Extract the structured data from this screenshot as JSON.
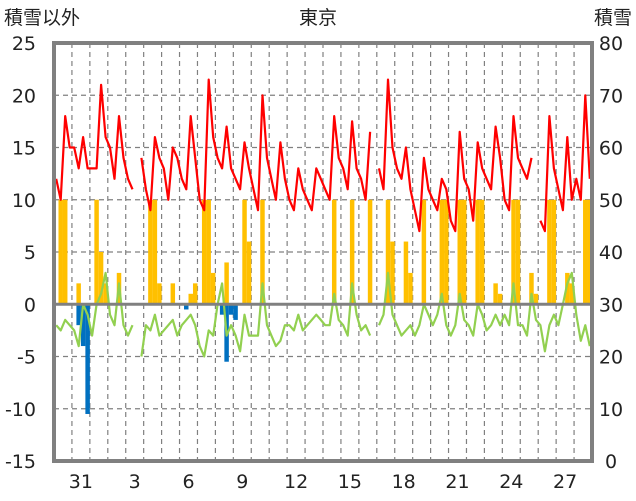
{
  "chart_data": {
    "type": "line",
    "title": "東京",
    "ylabel_left": "積雪以外",
    "ylabel_right": "積雪",
    "ylim_left": [
      -15,
      25
    ],
    "ylim_right": [
      0,
      80
    ],
    "yticks_left": [
      "25",
      "20",
      "15",
      "10",
      "5",
      "0",
      "-5",
      "-10",
      "-15"
    ],
    "yticks_right": [
      "80",
      "70",
      "60",
      "50",
      "40",
      "30",
      "20",
      "10",
      "0"
    ],
    "xtick_labels": [
      {
        "day_index": 1,
        "label": "31"
      },
      {
        "day_index": 4,
        "label": "3"
      },
      {
        "day_index": 7,
        "label": "6"
      },
      {
        "day_index": 10,
        "label": "9"
      },
      {
        "day_index": 13,
        "label": "12"
      },
      {
        "day_index": 16,
        "label": "15"
      },
      {
        "day_index": 19,
        "label": "18"
      },
      {
        "day_index": 22,
        "label": "21"
      },
      {
        "day_index": 25,
        "label": "24"
      },
      {
        "day_index": 28,
        "label": "27"
      }
    ],
    "days": 30,
    "samples_per_day": 4,
    "grid": true,
    "colors": {
      "red": "#ff0000",
      "green": "#92d050",
      "yellow": "#ffc000",
      "blue": "#0070c0",
      "frame": "#808080"
    },
    "series": [
      {
        "name": "red",
        "type": "line",
        "values": [
          12,
          10,
          18,
          15,
          15,
          13,
          16,
          13,
          13,
          13,
          21,
          16,
          15,
          12,
          18,
          14,
          12,
          11,
          null,
          14,
          11,
          9,
          16,
          14,
          13,
          10,
          15,
          14,
          12,
          11,
          18,
          14,
          10,
          9,
          21.5,
          16,
          14,
          13,
          17,
          13,
          12,
          11,
          15.5,
          13,
          11,
          9,
          20,
          14,
          12,
          10,
          15.5,
          12,
          10,
          9,
          13,
          11,
          10,
          9,
          13,
          12,
          11,
          10,
          18,
          14,
          13,
          11,
          17.5,
          13,
          12,
          10,
          16.5,
          null,
          13,
          11,
          21.5,
          15,
          13,
          12,
          15,
          11,
          9,
          7,
          14,
          11,
          10,
          9,
          12,
          11,
          8,
          7,
          16.5,
          12,
          11,
          8,
          15.5,
          13,
          12,
          11,
          17,
          14,
          10,
          9,
          18,
          14,
          13,
          12,
          14,
          null,
          8,
          7,
          18,
          13,
          11,
          9,
          16,
          10,
          12,
          10,
          20,
          12
        ]
      },
      {
        "name": "green",
        "type": "line",
        "values": [
          -2,
          -2.5,
          -1.5,
          -2,
          -2.5,
          -4,
          0,
          -1,
          -3,
          0,
          1,
          3,
          -1,
          -2,
          2,
          -2,
          -3,
          -2,
          null,
          -5,
          -2,
          -2.5,
          -1,
          -3,
          -2.5,
          -2,
          -1.5,
          -3,
          -2,
          -1.5,
          -1,
          -2,
          -4,
          -5,
          -2.5,
          -3,
          0,
          2,
          -3,
          -2,
          -3,
          -4.5,
          -1,
          -3,
          -3,
          -3,
          2,
          -2,
          -3,
          -4,
          -3.5,
          -2,
          -2,
          -2.5,
          -1,
          -2.5,
          -2,
          -1.5,
          -1,
          -1.5,
          -2,
          -2,
          1,
          -1.5,
          -2,
          -3,
          2,
          -1,
          -2.5,
          -2,
          -3,
          null,
          -2,
          -1,
          3,
          -1,
          -2,
          -3,
          -2.5,
          -2,
          -3,
          -2,
          0,
          -1,
          -2,
          -1,
          1,
          -2,
          -3,
          -2,
          1,
          -1.5,
          -2,
          -3,
          0,
          -1,
          -2.5,
          -2,
          -1,
          -2,
          -1,
          -2,
          2,
          -2,
          -2,
          -3,
          1,
          -1.5,
          -2,
          -4.5,
          -2,
          -1,
          -2,
          0,
          2,
          3,
          -1,
          -3.5,
          -2,
          -4
        ]
      },
      {
        "name": "yellow",
        "type": "bar",
        "values": [
          0,
          10,
          10,
          0,
          0,
          2,
          0,
          0,
          0,
          10,
          5,
          2,
          0,
          0,
          3,
          0,
          0,
          0,
          0,
          0,
          0,
          10,
          10,
          2,
          0,
          0,
          2,
          0,
          0,
          0,
          1,
          2,
          0,
          10,
          10,
          3,
          0,
          0,
          4,
          0,
          0,
          0,
          10,
          6,
          0,
          0,
          10,
          0,
          0,
          0,
          0,
          0,
          0,
          0,
          0,
          0,
          0,
          0,
          0,
          0,
          0,
          0,
          10,
          0,
          0,
          0,
          10,
          0,
          0,
          0,
          10,
          0,
          0,
          0,
          10,
          6,
          0,
          0,
          6,
          3,
          0,
          0,
          10,
          0,
          0,
          0,
          10,
          10,
          0,
          0,
          10,
          10,
          0,
          0,
          10,
          10,
          0,
          0,
          2,
          1,
          0,
          0,
          10,
          10,
          0,
          0,
          3,
          1,
          0,
          0,
          10,
          10,
          0,
          0,
          3,
          2,
          0,
          0,
          10,
          10
        ]
      },
      {
        "name": "blue",
        "type": "bar",
        "values": [
          0,
          0,
          0,
          0,
          0,
          -2,
          -4,
          -10.5,
          0,
          0,
          0,
          0,
          0,
          0,
          0,
          0,
          0,
          0,
          0,
          0,
          0,
          0,
          0,
          0,
          0,
          0,
          0,
          0,
          0,
          -0.5,
          0,
          0,
          0,
          0,
          0,
          0,
          0,
          -1,
          -5.5,
          -1,
          -1.5,
          0,
          0,
          0,
          0,
          0,
          0,
          0,
          0,
          0,
          0,
          0,
          0,
          0,
          0,
          0,
          0,
          0,
          0,
          0,
          0,
          0,
          0,
          0,
          0,
          0,
          0,
          0,
          0,
          0,
          0,
          0,
          0,
          0,
          0,
          0,
          0,
          0,
          0,
          0,
          0,
          0,
          0,
          0,
          0,
          0,
          0,
          0,
          0,
          0,
          0,
          0,
          0,
          0,
          0,
          0,
          0,
          0,
          0,
          0,
          0,
          0,
          0,
          0,
          0,
          0,
          0,
          0,
          0,
          0,
          0,
          0,
          0,
          0,
          0,
          0,
          0,
          0,
          0,
          0
        ]
      }
    ]
  }
}
